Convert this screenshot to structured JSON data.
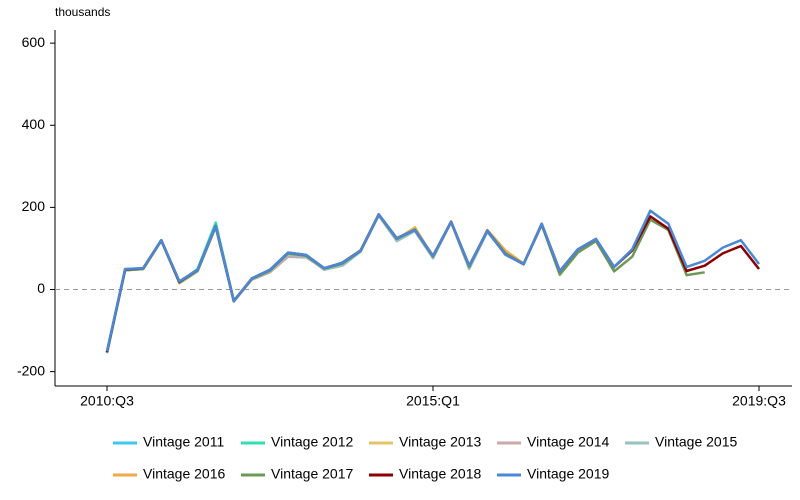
{
  "chart_data": {
    "type": "line",
    "y_label": "thousands",
    "categories": [
      "2010:Q3",
      null,
      null,
      null,
      null,
      null,
      null,
      null,
      null,
      null,
      null,
      null,
      null,
      null,
      null,
      null,
      null,
      null,
      "2015:Q1",
      null,
      null,
      null,
      null,
      null,
      null,
      null,
      null,
      null,
      null,
      null,
      null,
      null,
      null,
      null,
      null,
      null,
      "2019:Q3"
    ],
    "ylim": [
      -235,
      632
    ],
    "yticks": [
      -200,
      0,
      200,
      400,
      600
    ],
    "zero_line": true,
    "legend": "bottom",
    "series": [
      {
        "name": "Vintage 2011",
        "color": "#3ec8f0",
        "values": [
          -155,
          47,
          50,
          119,
          17,
          45,
          null,
          null,
          null,
          null,
          null,
          null,
          null,
          null,
          null,
          null,
          null,
          null,
          null,
          null,
          null,
          null,
          null,
          null,
          null,
          null,
          null,
          null,
          null,
          null,
          null,
          null,
          null,
          null,
          null,
          null,
          null
        ]
      },
      {
        "name": "Vintage 2012",
        "color": "#30e0b0",
        "values": [
          -153,
          48,
          51,
          120,
          18,
          50,
          163,
          -27,
          26,
          null,
          null,
          null,
          null,
          null,
          null,
          null,
          null,
          null,
          null,
          null,
          null,
          null,
          null,
          null,
          null,
          null,
          null,
          null,
          null,
          null,
          null,
          null,
          null,
          null,
          null,
          null,
          null
        ]
      },
      {
        "name": "Vintage 2013",
        "color": "#e2c466",
        "values": [
          -152,
          48,
          50,
          119,
          16,
          46,
          153,
          -29,
          25,
          45,
          88,
          82,
          51,
          66,
          96,
          182,
          122,
          152,
          80,
          166,
          56,
          null,
          null,
          null,
          null,
          null,
          null,
          null,
          null,
          null,
          null,
          null,
          null,
          null,
          null,
          null,
          null
        ]
      },
      {
        "name": "Vintage 2014",
        "color": "#c9a9a9",
        "values": [
          -152,
          47,
          50,
          119,
          15,
          44,
          152,
          -29,
          24,
          42,
          80,
          78,
          50,
          62,
          93,
          181,
          120,
          147,
          79,
          165,
          52,
          142,
          88,
          63,
          null,
          null,
          null,
          null,
          null,
          null,
          null,
          null,
          null,
          null,
          null,
          null,
          null
        ]
      },
      {
        "name": "Vintage 2015",
        "color": "#98c2c2",
        "values": [
          -153,
          48,
          51,
          120,
          16,
          45,
          153,
          -29,
          25,
          44,
          85,
          80,
          48,
          58,
          92,
          180,
          118,
          142,
          76,
          164,
          50,
          140,
          86,
          61,
          157,
          38,
          null,
          null,
          null,
          null,
          null,
          null,
          null,
          null,
          null,
          null,
          null
        ]
      },
      {
        "name": "Vintage 2016",
        "color": "#f2a94a",
        "values": [
          -153,
          48,
          51,
          120,
          17,
          46,
          154,
          -28,
          26,
          46,
          88,
          83,
          51,
          64,
          95,
          182,
          124,
          148,
          80,
          165,
          55,
          145,
          95,
          63,
          158,
          40,
          92,
          118,
          48,
          null,
          null,
          null,
          null,
          null,
          null,
          null,
          null
        ]
      },
      {
        "name": "Vintage 2017",
        "color": "#6b9a58",
        "values": [
          -154,
          47,
          50,
          119,
          17,
          46,
          154,
          -28,
          26,
          46,
          88,
          82,
          51,
          63,
          94,
          182,
          123,
          146,
          80,
          165,
          55,
          144,
          88,
          62,
          158,
          36,
          90,
          118,
          44,
          80,
          170,
          145,
          35,
          42,
          null,
          null,
          null
        ]
      },
      {
        "name": "Vintage 2018",
        "color": "#8b0000",
        "values": [
          -152,
          49,
          52,
          120,
          19,
          48,
          155,
          -28,
          27,
          48,
          90,
          84,
          52,
          65,
          95,
          183,
          125,
          145,
          82,
          165,
          58,
          143,
          85,
          62,
          160,
          45,
          98,
          123,
          55,
          95,
          178,
          148,
          45,
          58,
          88,
          106,
          50
        ]
      },
      {
        "name": "Vintage 2019",
        "color": "#4a88d8",
        "values": [
          -150,
          50,
          52,
          120,
          20,
          48,
          155,
          -28,
          27,
          48,
          90,
          84,
          52,
          65,
          95,
          183,
          125,
          145,
          82,
          165,
          58,
          143,
          85,
          62,
          160,
          45,
          98,
          123,
          55,
          98,
          192,
          160,
          55,
          70,
          102,
          120,
          62
        ]
      }
    ]
  }
}
